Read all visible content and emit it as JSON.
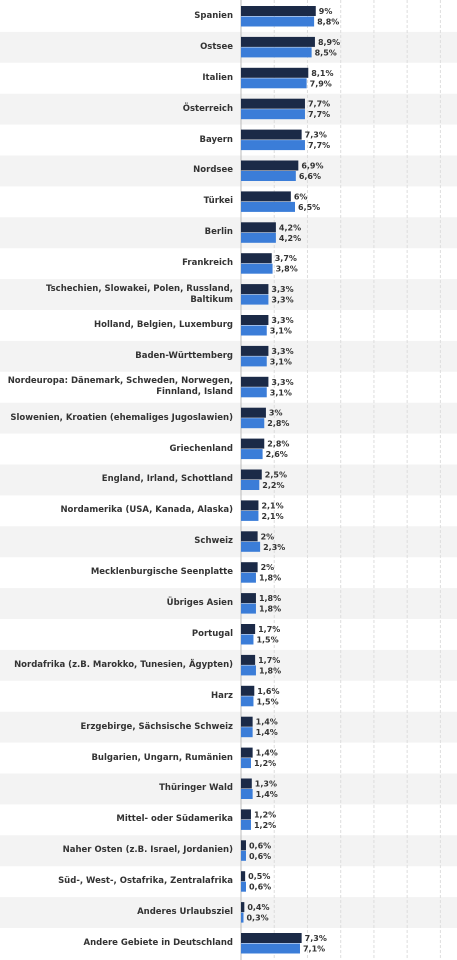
{
  "chart_data": {
    "type": "bar",
    "orientation": "horizontal",
    "categories": [
      "Spanien",
      "Ostsee",
      "Italien",
      "Österreich",
      "Bayern",
      "Nordsee",
      "Türkei",
      "Berlin",
      "Frankreich",
      "Tschechien, Slowakei, Polen, Russland, Baltikum",
      "Holland, Belgien, Luxemburg",
      "Baden-Württemberg",
      "Nordeuropa: Dänemark, Schweden, Norwegen, Finnland, Island",
      "Slowenien, Kroatien (ehemaliges Jugoslawien)",
      "Griechenland",
      "England, Irland, Schottland",
      "Nordamerika (USA, Kanada, Alaska)",
      "Schweiz",
      "Mecklenburgische Seenplatte",
      "Übriges Asien",
      "Portugal",
      "Nordafrika (z.B. Marokko, Tunesien, Ägypten)",
      "Harz",
      "Erzgebirge, Sächsische Schweiz",
      "Bulgarien, Ungarn, Rumänien",
      "Thüringer Wald",
      "Mittel- oder Südamerika",
      "Naher Osten (z.B. Israel, Jordanien)",
      "Süd-, West-, Ostafrika, Zentralafrika",
      "Anderes Urlaubsziel",
      "Andere Gebiete in Deutschland"
    ],
    "series": [
      {
        "color": "#1b2a47",
        "values": [
          9,
          8.9,
          8.1,
          7.7,
          7.3,
          6.9,
          6,
          4.2,
          3.7,
          3.3,
          3.3,
          3.3,
          3.3,
          3,
          2.8,
          2.5,
          2.1,
          2,
          2,
          1.8,
          1.7,
          1.7,
          1.6,
          1.4,
          1.4,
          1.3,
          1.2,
          0.6,
          0.5,
          0.4,
          7.3
        ],
        "value_labels": [
          "9%",
          "8,9%",
          "8,1%",
          "7,7%",
          "7,3%",
          "6,9%",
          "6%",
          "4,2%",
          "3,7%",
          "3,3%",
          "3,3%",
          "3,3%",
          "3,3%",
          "3%",
          "2,8%",
          "2,5%",
          "2,1%",
          "2%",
          "2%",
          "1,8%",
          "1,7%",
          "1,7%",
          "1,6%",
          "1,4%",
          "1,4%",
          "1,3%",
          "1,2%",
          "0,6%",
          "0,5%",
          "0,4%",
          "7,3%"
        ]
      },
      {
        "color": "#3b7dd8",
        "values": [
          8.8,
          8.5,
          7.9,
          7.7,
          7.7,
          6.6,
          6.5,
          4.2,
          3.8,
          3.3,
          3.1,
          3.1,
          3.1,
          2.8,
          2.6,
          2.2,
          2.1,
          2.3,
          1.8,
          1.8,
          1.5,
          1.8,
          1.5,
          1.4,
          1.2,
          1.4,
          1.2,
          0.6,
          0.6,
          0.3,
          7.1
        ],
        "value_labels": [
          "8,8%",
          "8,5%",
          "7,9%",
          "7,7%",
          "7,7%",
          "6,6%",
          "6,5%",
          "4,2%",
          "3,8%",
          "3,3%",
          "3,1%",
          "3,1%",
          "3,1%",
          "2,8%",
          "2,6%",
          "2,2%",
          "2,1%",
          "2,3%",
          "1,8%",
          "1,8%",
          "1,5%",
          "1,8%",
          "1,5%",
          "1,4%",
          "1,2%",
          "1,4%",
          "1,2%",
          "0,6%",
          "0,6%",
          "0,3%",
          "7,1%"
        ]
      }
    ],
    "xlim": [
      0,
      26
    ],
    "xticks": [
      0,
      4,
      8,
      12,
      16,
      20,
      24
    ],
    "grid": true
  }
}
